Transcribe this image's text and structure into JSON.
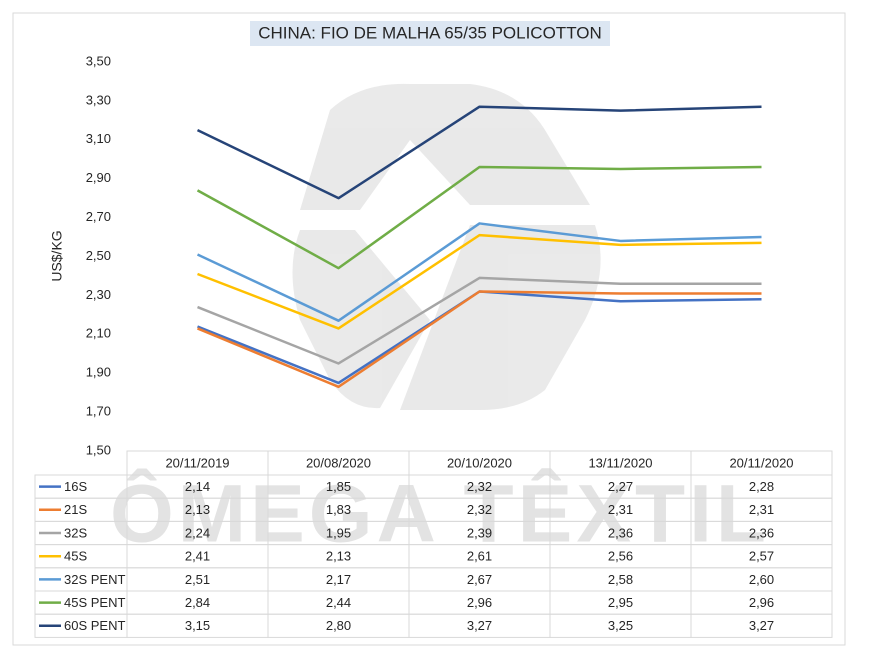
{
  "chart_data": {
    "type": "line",
    "title": "CHINA: FIO DE MALHA 65/35 POLICOTTON",
    "y_label": "US$/KG",
    "watermark": "ÔMEGA TÊXTIL",
    "categories": [
      "20/11/2019",
      "20/08/2020",
      "20/10/2020",
      "13/11/2020",
      "20/11/2020"
    ],
    "ylim": [
      1.5,
      3.5
    ],
    "yticks": [
      {
        "value": 1.5,
        "label": "1,50"
      },
      {
        "value": 1.7,
        "label": "1,70"
      },
      {
        "value": 1.9,
        "label": "1,90"
      },
      {
        "value": 2.1,
        "label": "2,10"
      },
      {
        "value": 2.3,
        "label": "2,30"
      },
      {
        "value": 2.5,
        "label": "2,50"
      },
      {
        "value": 2.7,
        "label": "2,70"
      },
      {
        "value": 2.9,
        "label": "2,90"
      },
      {
        "value": 3.1,
        "label": "3,10"
      },
      {
        "value": 3.3,
        "label": "3,30"
      },
      {
        "value": 3.5,
        "label": "3,50"
      }
    ],
    "series": [
      {
        "name": "16S",
        "color": "#4472c4",
        "values": [
          2.14,
          1.85,
          2.32,
          2.27,
          2.28
        ],
        "value_labels": [
          "2,14",
          "1,85",
          "2,32",
          "2,27",
          "2,28"
        ]
      },
      {
        "name": "21S",
        "color": "#ed7d31",
        "values": [
          2.13,
          1.83,
          2.32,
          2.31,
          2.31
        ],
        "value_labels": [
          "2,13",
          "1,83",
          "2,32",
          "2,31",
          "2,31"
        ]
      },
      {
        "name": "32S",
        "color": "#a5a5a5",
        "values": [
          2.24,
          1.95,
          2.39,
          2.36,
          2.36
        ],
        "value_labels": [
          "2,24",
          "1,95",
          "2,39",
          "2,36",
          "2,36"
        ]
      },
      {
        "name": "45S",
        "color": "#ffc000",
        "values": [
          2.41,
          2.13,
          2.61,
          2.56,
          2.57
        ],
        "value_labels": [
          "2,41",
          "2,13",
          "2,61",
          "2,56",
          "2,57"
        ]
      },
      {
        "name": "32S PENT",
        "color": "#5b9bd5",
        "values": [
          2.51,
          2.17,
          2.67,
          2.58,
          2.6
        ],
        "value_labels": [
          "2,51",
          "2,17",
          "2,67",
          "2,58",
          "2,60"
        ]
      },
      {
        "name": "45S PENT",
        "color": "#70ad47",
        "values": [
          2.84,
          2.44,
          2.96,
          2.95,
          2.96
        ],
        "value_labels": [
          "2,84",
          "2,44",
          "2,96",
          "2,95",
          "2,96"
        ]
      },
      {
        "name": "60S PENT",
        "color": "#264478",
        "values": [
          3.15,
          2.8,
          3.27,
          3.25,
          3.27
        ],
        "value_labels": [
          "3,15",
          "2,80",
          "3,27",
          "3,25",
          "3,27"
        ]
      }
    ]
  }
}
